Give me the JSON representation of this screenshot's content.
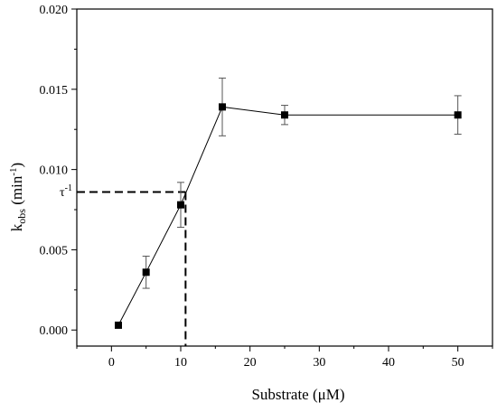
{
  "chart_data": {
    "type": "scatter",
    "title": "",
    "xlabel": "Substrate (μM)",
    "ylabel": {
      "main": "k",
      "sub": "obs",
      "unit_open": " (min",
      "unit_sup": "-1",
      "unit_close": ")"
    },
    "xlim": [
      -5,
      55
    ],
    "ylim": [
      -0.001,
      0.02
    ],
    "x_ticks": [
      0,
      10,
      20,
      30,
      40,
      50
    ],
    "x_tick_labels": [
      "0",
      "10",
      "20",
      "30",
      "40",
      "50"
    ],
    "y_ticks": [
      0.0,
      0.005,
      0.01,
      0.015,
      0.02
    ],
    "y_tick_labels": [
      "0.000",
      "0.005",
      "0.010",
      "0.015",
      "0.020"
    ],
    "grid": false,
    "legend": "none",
    "series": [
      {
        "marker": "square",
        "line": true,
        "color": "#000000",
        "points": [
          {
            "x": 1,
            "y": 0.0003,
            "err": 0.0
          },
          {
            "x": 5,
            "y": 0.0036,
            "err": 0.001
          },
          {
            "x": 10,
            "y": 0.0078,
            "err": 0.0014
          },
          {
            "x": 16,
            "y": 0.0139,
            "err": 0.0018
          },
          {
            "x": 25,
            "y": 0.0134,
            "err": 0.0006
          },
          {
            "x": 50,
            "y": 0.0134,
            "err": 0.0012
          }
        ]
      }
    ],
    "annotations": [
      {
        "type": "dashed-guide",
        "x": 10.7,
        "y": 0.0086,
        "label": "τ",
        "label_sup": "-1"
      }
    ]
  }
}
